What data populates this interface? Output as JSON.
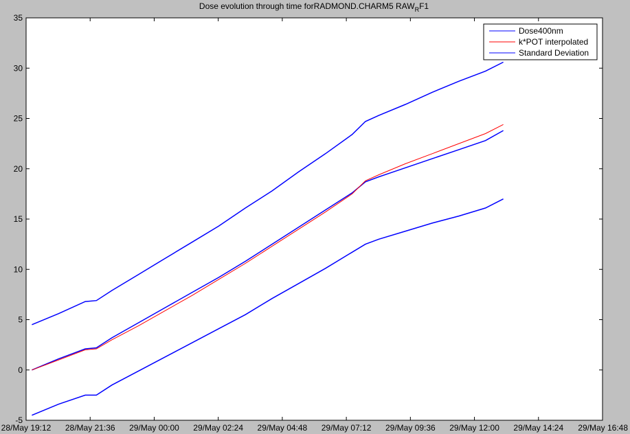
{
  "window": {
    "background": "#c0c0c0",
    "axes_background": "#ffffff"
  },
  "chart_data": {
    "type": "line",
    "title": "Dose evolution through time forRADMOND.CHARM5 RAW",
    "title_subscript": "R",
    "title_tail": "F1",
    "xlabel": "",
    "ylabel": "",
    "xlim": [
      "28/May 19:12",
      "29/May 16:48"
    ],
    "ylim": [
      -5,
      35
    ],
    "x_tick_labels": [
      "28/May 19:12",
      "28/May 21:36",
      "29/May 00:00",
      "29/May 02:24",
      "29/May 04:48",
      "29/May 07:12",
      "29/May 09:36",
      "29/May 12:00",
      "29/May 14:24",
      "29/May 16:48"
    ],
    "y_ticks": [
      -5,
      0,
      5,
      10,
      15,
      20,
      25,
      30,
      35
    ],
    "grid": false,
    "legend_position": "top-right",
    "x": [
      "28/May 19:25",
      "28/May 20:25",
      "28/May 21:25",
      "28/May 21:50",
      "28/May 22:25",
      "28/May 23:25",
      "29/May 00:25",
      "29/May 01:25",
      "29/May 02:25",
      "29/May 03:25",
      "29/May 04:25",
      "29/May 05:25",
      "29/May 06:25",
      "29/May 07:25",
      "29/May 07:55",
      "29/May 08:25",
      "29/May 09:25",
      "29/May 10:25",
      "29/May 11:25",
      "29/May 12:25",
      "29/May 13:05"
    ],
    "series": [
      {
        "name": "Dose400nm",
        "color": "#0000ff",
        "values": [
          0.0,
          1.1,
          2.1,
          2.2,
          3.2,
          4.7,
          6.2,
          7.7,
          9.2,
          10.8,
          12.5,
          14.2,
          15.9,
          17.6,
          18.7,
          19.2,
          20.1,
          21.0,
          21.9,
          22.8,
          23.8
        ]
      },
      {
        "name": "k*POT interpolated",
        "color": "#ff0000",
        "values": [
          0.0,
          1.0,
          2.0,
          2.1,
          3.0,
          4.4,
          5.9,
          7.4,
          9.0,
          10.6,
          12.3,
          14.0,
          15.7,
          17.5,
          18.8,
          19.4,
          20.5,
          21.5,
          22.5,
          23.5,
          24.4
        ]
      },
      {
        "name": "Standard Deviation",
        "color": "#0000ff",
        "values": [
          4.5,
          5.6,
          6.8,
          6.9,
          7.9,
          9.5,
          11.1,
          12.7,
          14.3,
          16.1,
          17.8,
          19.7,
          21.5,
          23.4,
          24.7,
          25.3,
          26.4,
          27.6,
          28.7,
          29.7,
          30.6
        ]
      },
      {
        "name": "",
        "color": "#0000ff",
        "values": [
          -4.5,
          -3.4,
          -2.5,
          -2.5,
          -1.5,
          -0.1,
          1.3,
          2.7,
          4.1,
          5.5,
          7.1,
          8.6,
          10.1,
          11.7,
          12.5,
          13.0,
          13.8,
          14.6,
          15.3,
          16.1,
          17.0
        ]
      }
    ]
  }
}
